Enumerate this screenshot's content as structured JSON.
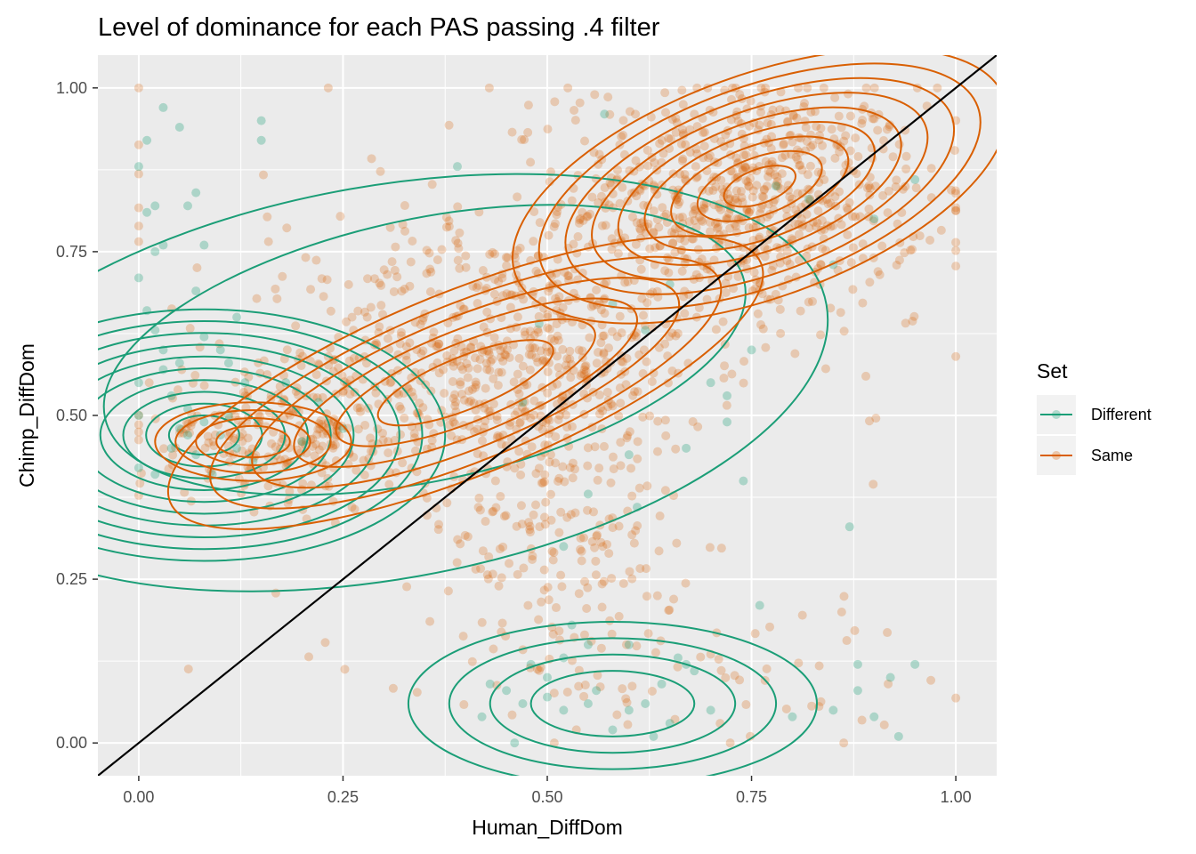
{
  "chart_data": {
    "type": "scatter",
    "title": "Level of dominance for each PAS passing .4 filter",
    "xlabel": "Human_DiffDom",
    "ylabel": "Chimp_DiffDom",
    "xlim": [
      -0.05,
      1.05
    ],
    "ylim": [
      -0.05,
      1.05
    ],
    "x_ticks": [
      0.0,
      0.25,
      0.5,
      0.75,
      1.0
    ],
    "x_tick_labels": [
      "0.00",
      "0.25",
      "0.50",
      "0.75",
      "1.00"
    ],
    "y_ticks": [
      0.0,
      0.25,
      0.5,
      0.75,
      1.0
    ],
    "y_tick_labels": [
      "0.00",
      "0.25",
      "0.50",
      "0.75",
      "1.00"
    ],
    "grid": true,
    "reference_line": {
      "slope": 1,
      "intercept": 0,
      "color": "#000000"
    },
    "legend": {
      "title": "Set",
      "position": "right"
    },
    "overlays": [
      "2d density contours per series"
    ],
    "series": [
      {
        "name": "Different",
        "color": "#1B9E77",
        "points": [
          [
            0.0,
            0.88
          ],
          [
            0.01,
            0.81
          ],
          [
            0.02,
            0.82
          ],
          [
            0.03,
            0.97
          ],
          [
            0.05,
            0.94
          ],
          [
            0.01,
            0.92
          ],
          [
            0.06,
            0.82
          ],
          [
            0.07,
            0.84
          ],
          [
            0.08,
            0.76
          ],
          [
            0.03,
            0.76
          ],
          [
            0.02,
            0.75
          ],
          [
            0.0,
            0.71
          ],
          [
            0.15,
            0.95
          ],
          [
            0.15,
            0.92
          ],
          [
            0.39,
            0.88
          ],
          [
            0.01,
            0.66
          ],
          [
            0.02,
            0.63
          ],
          [
            0.03,
            0.6
          ],
          [
            0.05,
            0.58
          ],
          [
            0.07,
            0.69
          ],
          [
            0.1,
            0.6
          ],
          [
            0.12,
            0.65
          ],
          [
            0.0,
            0.55
          ],
          [
            0.04,
            0.53
          ],
          [
            0.06,
            0.51
          ],
          [
            0.08,
            0.49
          ],
          [
            0.1,
            0.47
          ],
          [
            0.12,
            0.45
          ],
          [
            0.14,
            0.43
          ],
          [
            0.0,
            0.42
          ],
          [
            0.02,
            0.41
          ],
          [
            0.05,
            0.48
          ],
          [
            0.07,
            0.44
          ],
          [
            0.09,
            0.41
          ],
          [
            0.11,
            0.5
          ],
          [
            0.13,
            0.55
          ],
          [
            0.03,
            0.57
          ],
          [
            0.18,
            0.55
          ],
          [
            0.22,
            0.52
          ],
          [
            0.25,
            0.48
          ],
          [
            0.2,
            0.46
          ],
          [
            0.04,
            0.45
          ],
          [
            0.08,
            0.62
          ],
          [
            0.11,
            0.58
          ],
          [
            0.0,
            0.5
          ],
          [
            0.06,
            0.47
          ],
          [
            0.57,
            0.96
          ],
          [
            0.49,
            0.64
          ],
          [
            0.55,
            0.38
          ],
          [
            0.6,
            0.44
          ],
          [
            0.47,
            0.52
          ],
          [
            0.52,
            0.3
          ],
          [
            0.61,
            0.36
          ],
          [
            0.52,
            0.05
          ],
          [
            0.55,
            0.06
          ],
          [
            0.47,
            0.06
          ],
          [
            0.48,
            0.12
          ],
          [
            0.5,
            0.1
          ],
          [
            0.52,
            0.13
          ],
          [
            0.58,
            0.02
          ],
          [
            0.6,
            0.05
          ],
          [
            0.56,
            0.08
          ],
          [
            0.62,
            0.06
          ],
          [
            0.63,
            0.01
          ],
          [
            0.65,
            0.03
          ],
          [
            0.67,
            0.12
          ],
          [
            0.6,
            0.15
          ],
          [
            0.64,
            0.09
          ],
          [
            0.66,
            0.13
          ],
          [
            0.68,
            0.11
          ],
          [
            0.7,
            0.05
          ],
          [
            0.5,
            0.07
          ],
          [
            0.45,
            0.08
          ],
          [
            0.42,
            0.04
          ],
          [
            0.43,
            0.09
          ],
          [
            0.46,
            0.0
          ],
          [
            0.55,
            0.15
          ],
          [
            0.53,
            0.18
          ],
          [
            0.76,
            0.21
          ],
          [
            0.8,
            0.04
          ],
          [
            0.85,
            0.05
          ],
          [
            0.88,
            0.08
          ],
          [
            0.92,
            0.1
          ],
          [
            0.95,
            0.12
          ],
          [
            0.9,
            0.04
          ],
          [
            0.93,
            0.01
          ],
          [
            0.87,
            0.33
          ],
          [
            0.88,
            0.12
          ],
          [
            0.7,
            0.55
          ],
          [
            0.75,
            0.6
          ],
          [
            0.72,
            0.53
          ],
          [
            0.74,
            0.4
          ],
          [
            0.85,
            0.73
          ],
          [
            0.9,
            0.8
          ],
          [
            0.95,
            0.86
          ],
          [
            0.82,
            0.83
          ],
          [
            0.78,
            0.85
          ],
          [
            0.65,
            0.7
          ],
          [
            0.62,
            0.63
          ],
          [
            0.58,
            0.67
          ],
          [
            0.67,
            0.45
          ],
          [
            0.72,
            0.49
          ]
        ]
      },
      {
        "name": "Same",
        "color": "#D95F02",
        "points_note": "orange cloud drawn as a sample of ~1800 points concentrated around (0.75,0.85), (0.45,0.55), (0.15,0.45) and (0.55,0.15)"
      }
    ]
  }
}
